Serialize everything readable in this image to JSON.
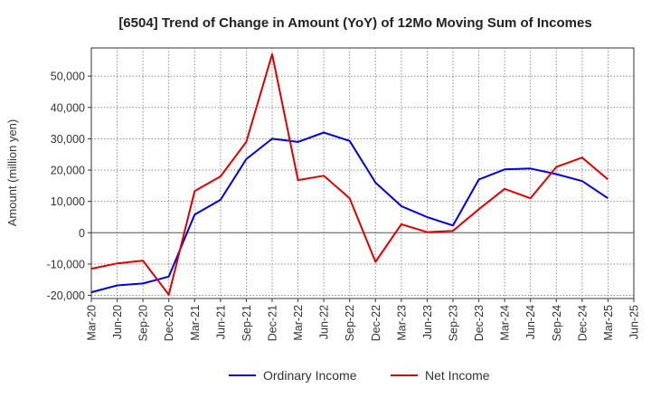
{
  "chart_data": {
    "type": "line",
    "title": "[6504]  Trend of Change in Amount (YoY) of 12Mo Moving Sum of Incomes",
    "xlabel": "",
    "ylabel": "Amount (million yen)",
    "ylim": [
      -21000,
      59000
    ],
    "yticks": [
      -20000,
      -10000,
      0,
      10000,
      20000,
      30000,
      40000,
      50000
    ],
    "ytick_labels": [
      "-20,000",
      "-10,000",
      "0",
      "10,000",
      "20,000",
      "30,000",
      "40,000",
      "50,000"
    ],
    "x": [
      "Mar-20",
      "Jun-20",
      "Sep-20",
      "Dec-20",
      "Mar-21",
      "Jun-21",
      "Sep-21",
      "Dec-21",
      "Mar-22",
      "Jun-22",
      "Sep-22",
      "Dec-22",
      "Mar-23",
      "Jun-23",
      "Sep-23",
      "Dec-23",
      "Mar-24",
      "Jun-24",
      "Sep-24",
      "Dec-24",
      "Mar-25",
      "Jun-25"
    ],
    "grid": true,
    "legend_position": "bottom",
    "series": [
      {
        "name": "Ordinary Income",
        "color": "#0000dd",
        "values": [
          -19000,
          -16800,
          -16200,
          -14000,
          5800,
          10500,
          23500,
          30000,
          29000,
          32000,
          29300,
          16000,
          8500,
          5000,
          2300,
          17000,
          20200,
          20500,
          18700,
          16500,
          11000,
          null
        ]
      },
      {
        "name": "Net Income",
        "color": "#dd0000",
        "values": [
          -11500,
          -9800,
          -8900,
          -19800,
          13300,
          18000,
          29000,
          57000,
          16800,
          18200,
          11000,
          -9300,
          2700,
          200,
          600,
          7500,
          14000,
          11000,
          21000,
          24000,
          17000,
          null
        ]
      }
    ]
  }
}
